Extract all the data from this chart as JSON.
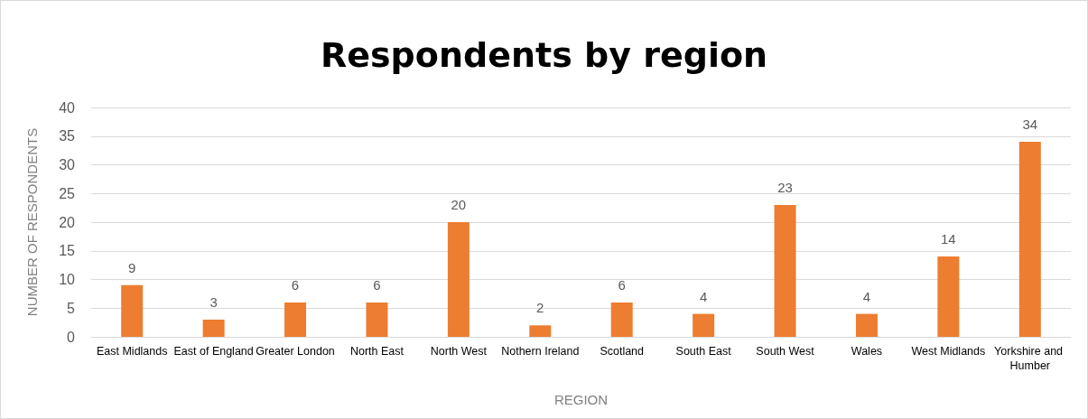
{
  "chart_data": {
    "type": "bar",
    "title": "Respondents by region",
    "xlabel": "REGION",
    "ylabel": "NUMBER OF RESPONDENTS",
    "categories": [
      "East Midlands",
      "East of England",
      "Greater London",
      "North East",
      "North West",
      "Nothern Ireland",
      "Scotland",
      "South East",
      "South West",
      "Wales",
      "West Midlands",
      "Yorkshire and Humber"
    ],
    "values": [
      9,
      3,
      6,
      6,
      20,
      2,
      6,
      4,
      23,
      4,
      14,
      34
    ],
    "color": "#ed7d31",
    "ylim": [
      0,
      40
    ],
    "yticks": [
      0,
      5,
      10,
      15,
      20,
      25,
      30,
      35,
      40
    ],
    "grid": "y",
    "data_labels": true
  }
}
